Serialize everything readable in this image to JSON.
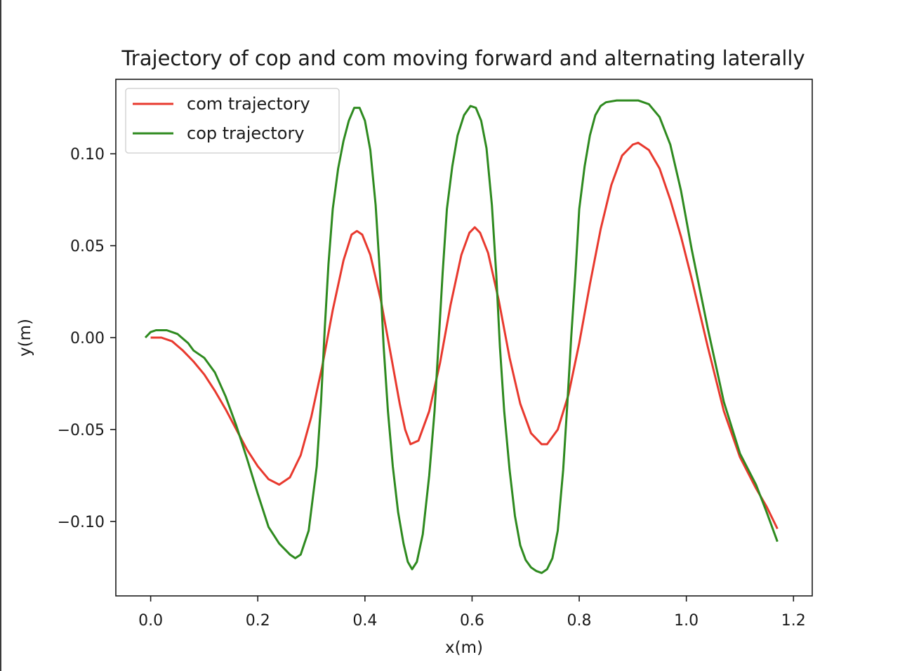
{
  "chart_data": {
    "type": "line",
    "title": "Trajectory of cop and com moving forward and alternating laterally",
    "xlabel": "x(m)",
    "ylabel": "y(m)",
    "xlim": [
      -0.065,
      1.235
    ],
    "ylim": [
      -0.1405,
      0.1405
    ],
    "xticks": [
      0.0,
      0.2,
      0.4,
      0.6,
      0.8,
      1.0,
      1.2
    ],
    "xtick_labels": [
      "0.0",
      "0.2",
      "0.4",
      "0.6",
      "0.8",
      "1.0",
      "1.2"
    ],
    "yticks": [
      -0.1,
      -0.05,
      0.0,
      0.05,
      0.1
    ],
    "ytick_labels": [
      "−0.10",
      "−0.05",
      "0.00",
      "0.05",
      "0.10"
    ],
    "grid": false,
    "legend_position": "upper-left",
    "series": [
      {
        "name": "com trajectory",
        "color": "#e8392e",
        "points": [
          [
            0.0,
            0.0
          ],
          [
            0.02,
            0.0
          ],
          [
            0.04,
            -0.002
          ],
          [
            0.06,
            -0.007
          ],
          [
            0.08,
            -0.013
          ],
          [
            0.1,
            -0.02
          ],
          [
            0.12,
            -0.029
          ],
          [
            0.14,
            -0.039
          ],
          [
            0.16,
            -0.05
          ],
          [
            0.18,
            -0.061
          ],
          [
            0.2,
            -0.07
          ],
          [
            0.22,
            -0.077
          ],
          [
            0.24,
            -0.08
          ],
          [
            0.26,
            -0.076
          ],
          [
            0.28,
            -0.064
          ],
          [
            0.3,
            -0.043
          ],
          [
            0.32,
            -0.016
          ],
          [
            0.34,
            0.015
          ],
          [
            0.36,
            0.042
          ],
          [
            0.375,
            0.056
          ],
          [
            0.385,
            0.058
          ],
          [
            0.395,
            0.056
          ],
          [
            0.41,
            0.045
          ],
          [
            0.43,
            0.02
          ],
          [
            0.45,
            -0.012
          ],
          [
            0.465,
            -0.036
          ],
          [
            0.475,
            -0.05
          ],
          [
            0.485,
            -0.058
          ],
          [
            0.5,
            -0.056
          ],
          [
            0.52,
            -0.04
          ],
          [
            0.54,
            -0.014
          ],
          [
            0.56,
            0.018
          ],
          [
            0.58,
            0.045
          ],
          [
            0.595,
            0.057
          ],
          [
            0.605,
            0.06
          ],
          [
            0.615,
            0.057
          ],
          [
            0.63,
            0.046
          ],
          [
            0.65,
            0.02
          ],
          [
            0.67,
            -0.011
          ],
          [
            0.69,
            -0.036
          ],
          [
            0.71,
            -0.052
          ],
          [
            0.73,
            -0.058
          ],
          [
            0.74,
            -0.058
          ],
          [
            0.76,
            -0.05
          ],
          [
            0.78,
            -0.031
          ],
          [
            0.8,
            -0.003
          ],
          [
            0.82,
            0.029
          ],
          [
            0.84,
            0.059
          ],
          [
            0.86,
            0.083
          ],
          [
            0.88,
            0.099
          ],
          [
            0.9,
            0.105
          ],
          [
            0.91,
            0.106
          ],
          [
            0.93,
            0.102
          ],
          [
            0.95,
            0.092
          ],
          [
            0.97,
            0.075
          ],
          [
            0.99,
            0.055
          ],
          [
            1.01,
            0.032
          ],
          [
            1.04,
            -0.005
          ],
          [
            1.07,
            -0.04
          ],
          [
            1.1,
            -0.065
          ],
          [
            1.13,
            -0.082
          ],
          [
            1.15,
            -0.092
          ],
          [
            1.17,
            -0.104
          ]
        ]
      },
      {
        "name": "cop trajectory",
        "color": "#2e8a1f",
        "points": [
          [
            -0.01,
            0.0
          ],
          [
            0.0,
            0.003
          ],
          [
            0.01,
            0.004
          ],
          [
            0.03,
            0.004
          ],
          [
            0.05,
            0.002
          ],
          [
            0.07,
            -0.003
          ],
          [
            0.08,
            -0.007
          ],
          [
            0.1,
            -0.011
          ],
          [
            0.12,
            -0.019
          ],
          [
            0.14,
            -0.032
          ],
          [
            0.16,
            -0.048
          ],
          [
            0.18,
            -0.066
          ],
          [
            0.2,
            -0.085
          ],
          [
            0.22,
            -0.103
          ],
          [
            0.24,
            -0.112
          ],
          [
            0.26,
            -0.118
          ],
          [
            0.27,
            -0.12
          ],
          [
            0.28,
            -0.118
          ],
          [
            0.295,
            -0.105
          ],
          [
            0.31,
            -0.07
          ],
          [
            0.318,
            -0.035
          ],
          [
            0.325,
            0.005
          ],
          [
            0.332,
            0.04
          ],
          [
            0.34,
            0.07
          ],
          [
            0.35,
            0.092
          ],
          [
            0.36,
            0.107
          ],
          [
            0.37,
            0.118
          ],
          [
            0.38,
            0.125
          ],
          [
            0.39,
            0.125
          ],
          [
            0.4,
            0.118
          ],
          [
            0.41,
            0.102
          ],
          [
            0.42,
            0.072
          ],
          [
            0.428,
            0.035
          ],
          [
            0.435,
            -0.005
          ],
          [
            0.443,
            -0.04
          ],
          [
            0.452,
            -0.07
          ],
          [
            0.462,
            -0.095
          ],
          [
            0.472,
            -0.112
          ],
          [
            0.48,
            -0.122
          ],
          [
            0.488,
            -0.126
          ],
          [
            0.497,
            -0.122
          ],
          [
            0.508,
            -0.107
          ],
          [
            0.52,
            -0.075
          ],
          [
            0.53,
            -0.04
          ],
          [
            0.537,
            -0.005
          ],
          [
            0.545,
            0.035
          ],
          [
            0.553,
            0.07
          ],
          [
            0.563,
            0.093
          ],
          [
            0.573,
            0.11
          ],
          [
            0.585,
            0.121
          ],
          [
            0.597,
            0.126
          ],
          [
            0.607,
            0.125
          ],
          [
            0.617,
            0.118
          ],
          [
            0.627,
            0.103
          ],
          [
            0.637,
            0.072
          ],
          [
            0.645,
            0.035
          ],
          [
            0.652,
            -0.005
          ],
          [
            0.66,
            -0.04
          ],
          [
            0.67,
            -0.072
          ],
          [
            0.68,
            -0.097
          ],
          [
            0.69,
            -0.113
          ],
          [
            0.7,
            -0.121
          ],
          [
            0.71,
            -0.125
          ],
          [
            0.72,
            -0.127
          ],
          [
            0.73,
            -0.128
          ],
          [
            0.74,
            -0.126
          ],
          [
            0.75,
            -0.12
          ],
          [
            0.76,
            -0.105
          ],
          [
            0.77,
            -0.072
          ],
          [
            0.778,
            -0.035
          ],
          [
            0.785,
            0.0
          ],
          [
            0.793,
            0.035
          ],
          [
            0.8,
            0.07
          ],
          [
            0.81,
            0.093
          ],
          [
            0.82,
            0.11
          ],
          [
            0.83,
            0.121
          ],
          [
            0.84,
            0.126
          ],
          [
            0.85,
            0.128
          ],
          [
            0.87,
            0.129
          ],
          [
            0.89,
            0.129
          ],
          [
            0.91,
            0.129
          ],
          [
            0.93,
            0.127
          ],
          [
            0.95,
            0.12
          ],
          [
            0.97,
            0.105
          ],
          [
            0.99,
            0.08
          ],
          [
            1.01,
            0.048
          ],
          [
            1.04,
            0.005
          ],
          [
            1.07,
            -0.035
          ],
          [
            1.1,
            -0.063
          ],
          [
            1.13,
            -0.08
          ],
          [
            1.15,
            -0.095
          ],
          [
            1.17,
            -0.111
          ]
        ]
      }
    ]
  }
}
